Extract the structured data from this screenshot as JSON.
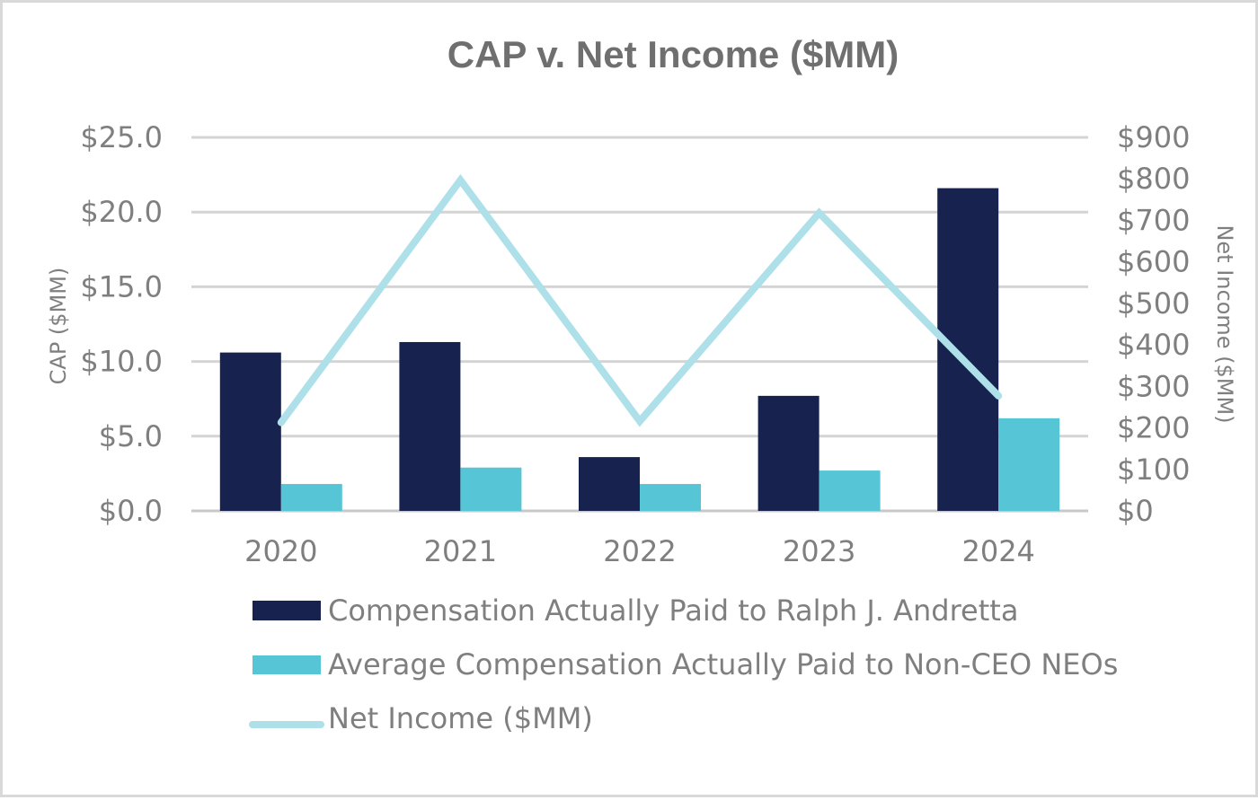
{
  "chart_data": {
    "type": "bar",
    "title": "CAP v. Net Income ($MM)",
    "categories": [
      "2020",
      "2021",
      "2022",
      "2023",
      "2024"
    ],
    "series": [
      {
        "name": "Compensation Actually Paid to Ralph J. Andretta",
        "type": "bar",
        "axis": "left",
        "color": "#17224f",
        "values": [
          10.6,
          11.3,
          3.6,
          7.7,
          21.6
        ]
      },
      {
        "name": "Average Compensation Actually Paid to Non-CEO NEOs",
        "type": "bar",
        "axis": "left",
        "color": "#56c5d6",
        "values": [
          1.8,
          2.9,
          1.8,
          2.7,
          6.2
        ]
      },
      {
        "name": "Net Income ($MM)",
        "type": "line",
        "axis": "right",
        "color": "#ade0e8",
        "values": [
          213,
          797,
          216,
          718,
          277
        ]
      }
    ],
    "ylabel": "CAP ($MM)",
    "ylabel_right": "Net Income ($MM)",
    "ylim": [
      0,
      25
    ],
    "ylim_right": [
      0,
      900
    ],
    "yticks": [
      "$0.0",
      "$5.0",
      "$10.0",
      "$15.0",
      "$20.0",
      "$25.0"
    ],
    "yticks_right": [
      "$0",
      "$100",
      "$200",
      "$300",
      "$400",
      "$500",
      "$600",
      "$700",
      "$800",
      "$900"
    ],
    "grid": true,
    "legend_position": "bottom"
  }
}
